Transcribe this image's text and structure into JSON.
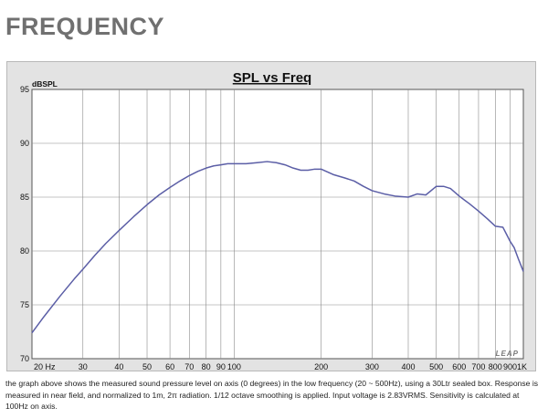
{
  "page": {
    "heading": "FREQUENCY",
    "caption": "the graph above shows the measured sound pressure level on axis (0 degrees) in the low frequency (20 ~ 500Hz), using a 30Ltr sealed box. Response is measured in near field, and normalized to 1m, 2π radiation. 1/12 octave smoothing is applied. Input voltage is 2.83VRMS. Sensitivity is calculated at 100Hz on axis."
  },
  "chart_data": {
    "type": "line",
    "title": "SPL vs Freq",
    "ylabel": "dBSPL",
    "xlabel": "",
    "x_scale": "log",
    "xlim": [
      20,
      1000
    ],
    "ylim": [
      70,
      95
    ],
    "grid": true,
    "y_ticks": [
      "70",
      "75",
      "80",
      "85",
      "90",
      "95"
    ],
    "x_ticks": [
      {
        "value": 20,
        "label": "20  Hz"
      },
      {
        "value": 30,
        "label": "30"
      },
      {
        "value": 40,
        "label": "40"
      },
      {
        "value": 50,
        "label": "50"
      },
      {
        "value": 60,
        "label": "60"
      },
      {
        "value": 70,
        "label": "70"
      },
      {
        "value": 80,
        "label": "80"
      },
      {
        "value": 90,
        "label": "90"
      },
      {
        "value": 100,
        "label": "100"
      },
      {
        "value": 200,
        "label": "200"
      },
      {
        "value": 300,
        "label": "300"
      },
      {
        "value": 400,
        "label": "400"
      },
      {
        "value": 500,
        "label": "500"
      },
      {
        "value": 600,
        "label": "600"
      },
      {
        "value": 700,
        "label": "700"
      },
      {
        "value": 800,
        "label": "800"
      },
      {
        "value": 900,
        "label": "900"
      },
      {
        "value": 1000,
        "label": "1K"
      }
    ],
    "watermark": "LEAP",
    "line_color": "#5b5ea6",
    "grid_color": "#8a8a8a",
    "series": [
      {
        "color": "#5b5ea6",
        "x": [
          20,
          22,
          25,
          28,
          30,
          33,
          36,
          40,
          45,
          50,
          55,
          60,
          65,
          70,
          75,
          80,
          85,
          90,
          95,
          100,
          110,
          120,
          130,
          140,
          150,
          160,
          170,
          180,
          190,
          200,
          220,
          240,
          260,
          280,
          300,
          330,
          360,
          400,
          430,
          460,
          500,
          530,
          560,
          600,
          650,
          700,
          750,
          800,
          850,
          900,
          930,
          960,
          1000
        ],
        "y": [
          72.4,
          73.9,
          75.8,
          77.4,
          78.3,
          79.6,
          80.7,
          81.9,
          83.2,
          84.3,
          85.2,
          85.9,
          86.5,
          87.0,
          87.4,
          87.7,
          87.9,
          88.0,
          88.1,
          88.1,
          88.1,
          88.2,
          88.3,
          88.2,
          88.0,
          87.7,
          87.5,
          87.5,
          87.6,
          87.6,
          87.1,
          86.8,
          86.5,
          86.0,
          85.6,
          85.3,
          85.1,
          85.0,
          85.3,
          85.2,
          86.0,
          86.0,
          85.8,
          85.1,
          84.4,
          83.7,
          83.0,
          82.3,
          82.2,
          80.9,
          80.3,
          79.3,
          78.1
        ]
      }
    ]
  }
}
